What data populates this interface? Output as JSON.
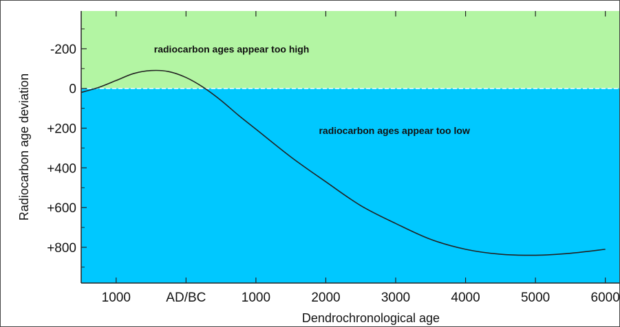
{
  "chart_data": {
    "type": "line",
    "title": "",
    "xlabel": "Dendrochronological age",
    "ylabel": "Radiocarbon age deviation",
    "x_ticks": [
      {
        "value": -1000,
        "label": "1000"
      },
      {
        "value": 0,
        "label": "AD/BC"
      },
      {
        "value": 1000,
        "label": "1000"
      },
      {
        "value": 2000,
        "label": "2000"
      },
      {
        "value": 3000,
        "label": "3000"
      },
      {
        "value": 4000,
        "label": "4000"
      },
      {
        "value": 5000,
        "label": "5000"
      },
      {
        "value": 6000,
        "label": "6000"
      }
    ],
    "y_ticks": [
      {
        "value": -200,
        "label": "-200"
      },
      {
        "value": 0,
        "label": "0"
      },
      {
        "value": 200,
        "label": "+200"
      },
      {
        "value": 400,
        "label": "+400"
      },
      {
        "value": 600,
        "label": "+600"
      },
      {
        "value": 800,
        "label": "+800"
      }
    ],
    "xlim": [
      -1500,
      6200
    ],
    "ylim": [
      -390,
      980
    ],
    "y_inverted": true,
    "grid": false,
    "regions": [
      {
        "label": "radiocarbon ages appear too high",
        "from": -390,
        "to": 0,
        "color": "#b3f5a3"
      },
      {
        "label": "radiocarbon ages appear too low",
        "from": 0,
        "to": 980,
        "color": "#00c8ff"
      }
    ],
    "series": [
      {
        "color": "#222222",
        "x": [
          -1500,
          -1250,
          -1000,
          -750,
          -500,
          -250,
          0,
          250,
          500,
          750,
          1000,
          1500,
          2000,
          2500,
          3000,
          3500,
          4000,
          4500,
          5000,
          5500,
          6000
        ],
        "y": [
          20,
          -5,
          -40,
          -75,
          -90,
          -85,
          -55,
          -5,
          60,
          135,
          205,
          345,
          470,
          590,
          680,
          760,
          810,
          835,
          840,
          830,
          810
        ]
      }
    ]
  }
}
